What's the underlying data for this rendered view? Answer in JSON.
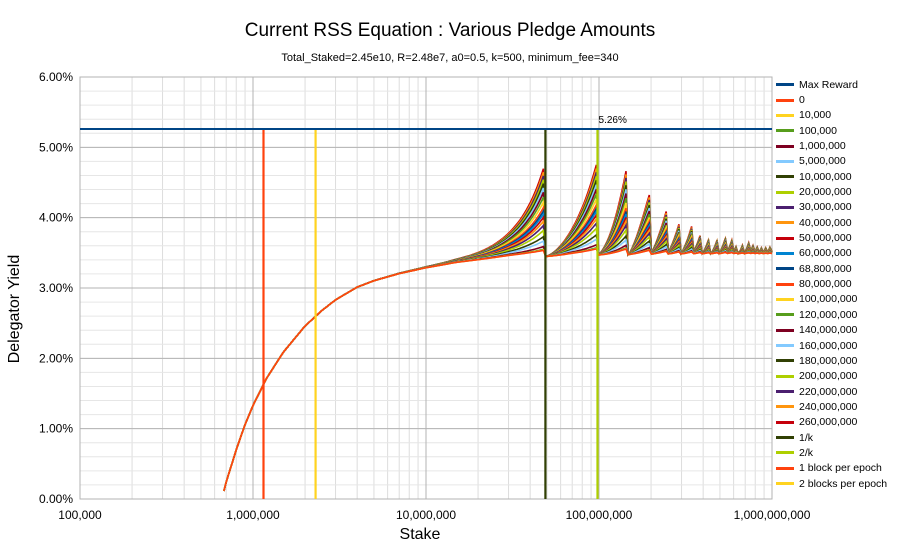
{
  "chart_data": {
    "type": "line",
    "title": "Current RSS Equation : Various Pledge Amounts",
    "subtitle": "Total_Staked=2.45e10, R=2.48e7, a0=0.5, k=500, minimum_fee=340",
    "xlabel": "Stake",
    "ylabel": "Delegator Yield",
    "x_scale": "log",
    "xlim": [
      100000,
      1000000000
    ],
    "ylim": [
      0,
      6
    ],
    "x_ticks": [
      "100,000",
      "1,000,000",
      "10,000,000",
      "100,000,000",
      "1,000,000,000"
    ],
    "y_ticks": [
      "0.00%",
      "1.00%",
      "2.00%",
      "3.00%",
      "4.00%",
      "5.00%",
      "6.00%"
    ],
    "grid": true,
    "legend_position": "right",
    "max_reward_label": "5.26%",
    "max_reward_value": 5.26,
    "base_curve": {
      "x": [
        660000,
        700000,
        800000,
        900000,
        1000000,
        1200000,
        1500000,
        2000000,
        2500000,
        3000000,
        4000000,
        5000000,
        7000000,
        10000000,
        15000000,
        20000000,
        30000000,
        50000000,
        70000000,
        100000000,
        200000000,
        500000000,
        1000000000
      ],
      "y": [
        0,
        0.24,
        0.7,
        1.06,
        1.33,
        1.72,
        2.09,
        2.46,
        2.68,
        2.83,
        3.01,
        3.1,
        3.2,
        3.28,
        3.35,
        3.38,
        3.42,
        3.45,
        3.47,
        3.47,
        3.48,
        3.49,
        3.49
      ]
    },
    "series": [
      {
        "name": "Max Reward",
        "color": "#004586",
        "kind": "hline",
        "value": 5.26
      },
      {
        "name": "0",
        "color": "#ff420e",
        "pledge": 0
      },
      {
        "name": "10,000",
        "color": "#ffd320",
        "pledge": 10000
      },
      {
        "name": "100,000",
        "color": "#579d1c",
        "pledge": 100000
      },
      {
        "name": "1,000,000",
        "color": "#7e0021",
        "pledge": 1000000
      },
      {
        "name": "5,000,000",
        "color": "#83caff",
        "pledge": 5000000
      },
      {
        "name": "10,000,000",
        "color": "#314004",
        "pledge": 10000000
      },
      {
        "name": "20,000,000",
        "color": "#aecf00",
        "pledge": 20000000
      },
      {
        "name": "30,000,000",
        "color": "#4b1f6f",
        "pledge": 30000000
      },
      {
        "name": "40,000,000",
        "color": "#ff950e",
        "pledge": 40000000
      },
      {
        "name": "50,000,000",
        "color": "#c5000b",
        "pledge": 50000000
      },
      {
        "name": "60,000,000",
        "color": "#0084d1",
        "pledge": 60000000
      },
      {
        "name": "68,800,000",
        "color": "#004586",
        "pledge": 68800000
      },
      {
        "name": "80,000,000",
        "color": "#ff420e",
        "pledge": 80000000
      },
      {
        "name": "100,000,000",
        "color": "#ffd320",
        "pledge": 100000000
      },
      {
        "name": "120,000,000",
        "color": "#579d1c",
        "pledge": 120000000
      },
      {
        "name": "140,000,000",
        "color": "#7e0021",
        "pledge": 140000000
      },
      {
        "name": "160,000,000",
        "color": "#83caff",
        "pledge": 160000000
      },
      {
        "name": "180,000,000",
        "color": "#314004",
        "pledge": 180000000
      },
      {
        "name": "200,000,000",
        "color": "#aecf00",
        "pledge": 200000000
      },
      {
        "name": "220,000,000",
        "color": "#4b1f6f",
        "pledge": 220000000
      },
      {
        "name": "240,000,000",
        "color": "#ff950e",
        "pledge": 240000000
      },
      {
        "name": "260,000,000",
        "color": "#c5000b",
        "pledge": 260000000
      },
      {
        "name": "1/k",
        "color": "#0084d1",
        "kind": "vline",
        "value": 49000000
      },
      {
        "name": "2/k",
        "color": "#004586",
        "kind": "vline",
        "value": 98000000
      },
      {
        "name": "1 block per epoch",
        "color": "#ff420e",
        "kind": "vline",
        "value": 1150000
      },
      {
        "name": "2 blocks per epoch",
        "color": "#ffd320",
        "kind": "vline",
        "value": 2300000
      }
    ],
    "display_colors": {
      "1/k": "#314004",
      "2/k": "#aecf00",
      "1 block per epoch": "#ff420e",
      "2 blocks per epoch": "#ffd320",
      "Max Reward": "#004586"
    }
  }
}
